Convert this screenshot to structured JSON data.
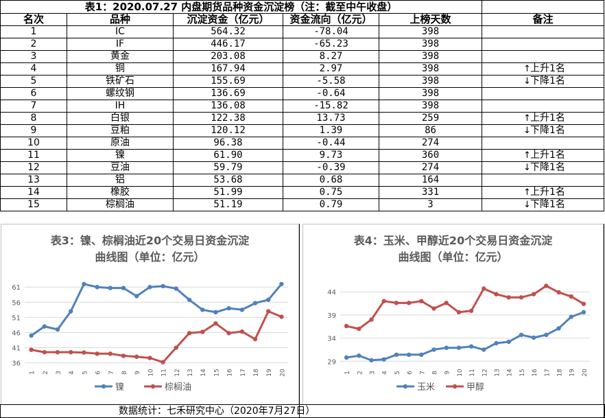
{
  "table": {
    "title": "表1：2020.07.27 内盘期货品种资金沉淀榜（注：截至中午收盘）",
    "headers": [
      "名次",
      "品种",
      "沉淀资金（亿元）",
      "资金流向（亿元）",
      "上榜天数",
      "备注"
    ],
    "rows": [
      {
        "rank": "1",
        "name": "IC",
        "amount": "564.32",
        "flow": "-78.04",
        "days": "398",
        "arrow": "",
        "note": ""
      },
      {
        "rank": "2",
        "name": "IF",
        "amount": "446.17",
        "flow": "-65.23",
        "days": "398",
        "arrow": "",
        "note": ""
      },
      {
        "rank": "3",
        "name": "黄金",
        "amount": "203.08",
        "flow": "8.27",
        "days": "398",
        "arrow": "",
        "note": ""
      },
      {
        "rank": "4",
        "name": "铜",
        "amount": "167.94",
        "flow": "2.97",
        "days": "398",
        "arrow": "↑",
        "note": "上升1名"
      },
      {
        "rank": "5",
        "name": "铁矿石",
        "amount": "155.69",
        "flow": "-5.58",
        "days": "398",
        "arrow": "↓",
        "note": "下降1名"
      },
      {
        "rank": "6",
        "name": "螺纹钢",
        "amount": "136.69",
        "flow": "-0.64",
        "days": "398",
        "arrow": "",
        "note": ""
      },
      {
        "rank": "7",
        "name": "IH",
        "amount": "136.08",
        "flow": "-15.82",
        "days": "398",
        "arrow": "",
        "note": ""
      },
      {
        "rank": "8",
        "name": "白银",
        "amount": "122.38",
        "flow": "13.73",
        "days": "259",
        "arrow": "↑",
        "note": "上升1名"
      },
      {
        "rank": "9",
        "name": "豆粕",
        "amount": "120.12",
        "flow": "1.39",
        "days": "86",
        "arrow": "↓",
        "note": "下降1名"
      },
      {
        "rank": "10",
        "name": "原油",
        "amount": "96.38",
        "flow": "-0.44",
        "days": "274",
        "arrow": "",
        "note": ""
      },
      {
        "rank": "11",
        "name": "镍",
        "amount": "61.90",
        "flow": "9.73",
        "days": "360",
        "arrow": "↑",
        "note": "上升1名"
      },
      {
        "rank": "12",
        "name": "豆油",
        "amount": "59.79",
        "flow": "-0.39",
        "days": "274",
        "arrow": "↓",
        "note": "下降1名"
      },
      {
        "rank": "13",
        "name": "铝",
        "amount": "53.68",
        "flow": "0.68",
        "days": "164",
        "arrow": "",
        "note": ""
      },
      {
        "rank": "14",
        "name": "橡胶",
        "amount": "51.99",
        "flow": "0.75",
        "days": "331",
        "arrow": "↑",
        "note": "上升1名"
      },
      {
        "rank": "15",
        "name": "棕榈油",
        "amount": "51.19",
        "flow": "0.79",
        "days": "3",
        "arrow": "↓",
        "note": "下降1名"
      }
    ]
  },
  "footer": "数据统计：七禾研究中心（2020年7月27日）",
  "chart_data": [
    {
      "type": "line",
      "title": "表3：镍、棕榈油近20个交易日资金沉淀\n曲线图（单位：亿元）",
      "x": [
        "1",
        "2",
        "3",
        "4",
        "5",
        "6",
        "7",
        "8",
        "9",
        "10",
        "11",
        "12",
        "13",
        "14",
        "15",
        "16",
        "17",
        "18",
        "19",
        "20"
      ],
      "yticks": [
        36,
        41,
        46,
        51,
        56,
        61
      ],
      "ylim": [
        35,
        64
      ],
      "grid": "horizontal",
      "legend": "bottom",
      "series": [
        {
          "name": "镍",
          "color": "#4f81bd",
          "values": [
            45.0,
            48.0,
            47.0,
            53.0,
            62.0,
            61.0,
            60.7,
            60.7,
            58.0,
            61.0,
            61.3,
            60.5,
            56.8,
            53.5,
            52.7,
            54.0,
            53.5,
            55.7,
            56.8,
            62.0
          ]
        },
        {
          "name": "棕榈油",
          "color": "#c0504d",
          "values": [
            40.3,
            39.5,
            39.5,
            39.5,
            39.4,
            39.0,
            39.0,
            38.3,
            38.0,
            37.6,
            36.2,
            41.0,
            45.8,
            46.2,
            49.0,
            45.8,
            46.3,
            43.8,
            53.0,
            51.2
          ]
        }
      ]
    },
    {
      "type": "line",
      "title": "表4：玉米、甲醇近20个交易日资金沉淀\n曲线图（单位：亿元）",
      "x": [
        "1",
        "2",
        "3",
        "4",
        "5",
        "6",
        "7",
        "8",
        "9",
        "10",
        "11",
        "12",
        "13",
        "14",
        "15",
        "16",
        "17",
        "18",
        "19",
        "20"
      ],
      "yticks": [
        29,
        34,
        39,
        44
      ],
      "ylim": [
        28,
        47
      ],
      "grid": "horizontal",
      "legend": "bottom",
      "series": [
        {
          "name": "玉米",
          "color": "#4f81bd",
          "values": [
            29.8,
            30.2,
            29.2,
            29.4,
            30.4,
            30.4,
            30.4,
            31.5,
            31.9,
            31.9,
            32.2,
            31.5,
            32.9,
            33.2,
            34.7,
            34.1,
            34.7,
            36.1,
            38.6,
            39.6
          ]
        },
        {
          "name": "甲醇",
          "color": "#c0504d",
          "values": [
            36.6,
            36.0,
            38.0,
            42.0,
            41.6,
            41.6,
            42.0,
            40.4,
            41.6,
            39.6,
            39.9,
            44.7,
            43.5,
            42.8,
            42.8,
            43.5,
            45.3,
            43.9,
            43.0,
            41.4
          ]
        }
      ]
    }
  ]
}
